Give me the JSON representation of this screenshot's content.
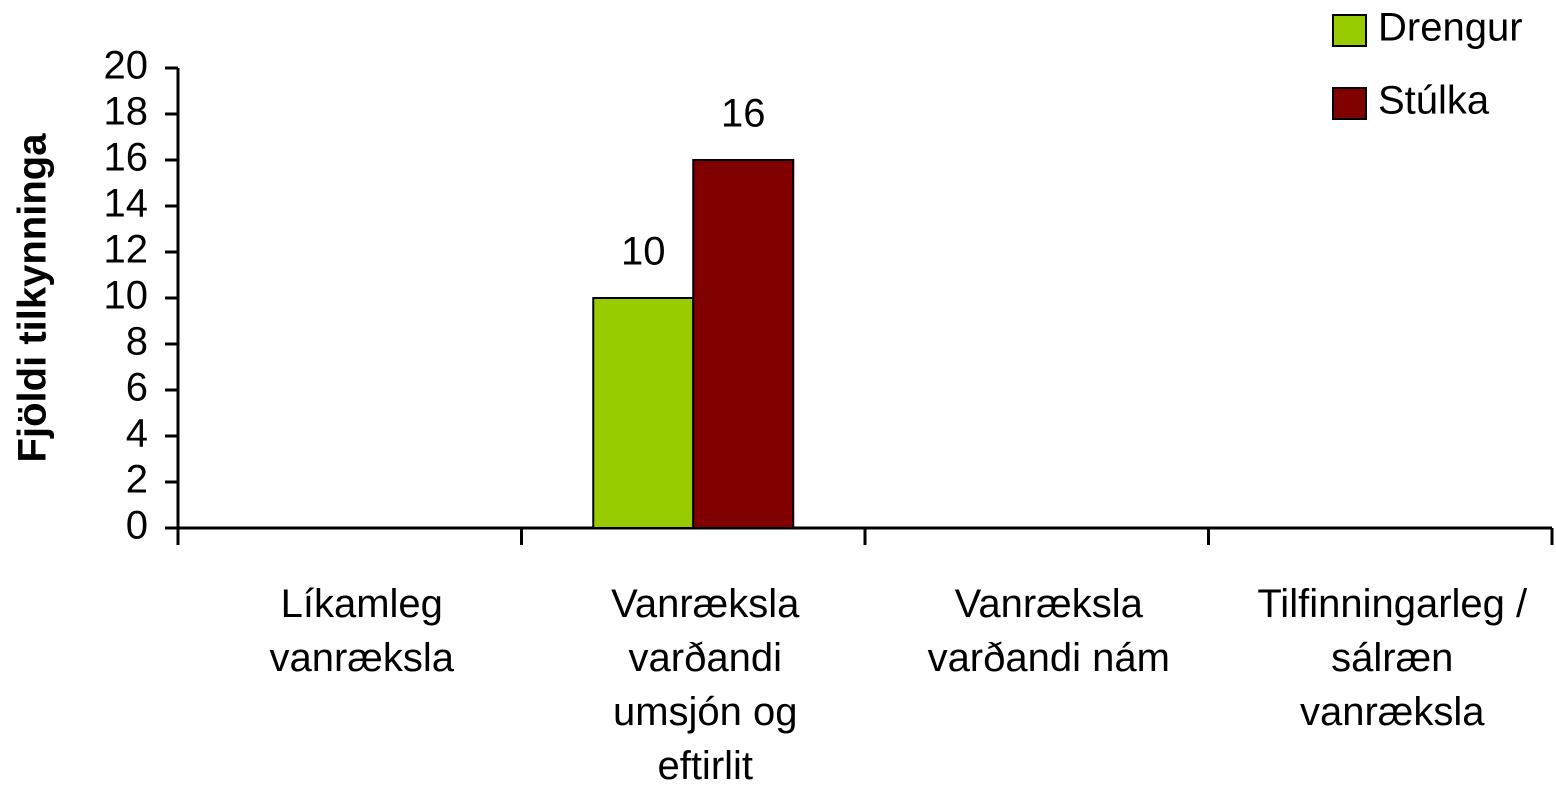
{
  "chart_data": {
    "type": "bar",
    "y_label": "Fjöldi tilkynninga",
    "categories": [
      "Líkamleg\nvanræksla",
      "Vanræksla\nvarðandi\numsjón og\neftirlit",
      "Vanræksla\nvarðandi nám",
      "Tilfinningarleg /\nsálræn\nvanræksla"
    ],
    "series": [
      {
        "name": "Drengur",
        "color": "#99cc00",
        "values": [
          null,
          10,
          null,
          null
        ]
      },
      {
        "name": "Stúlka",
        "color": "#800000",
        "values": [
          null,
          16,
          null,
          null
        ]
      }
    ],
    "ylim": [
      0,
      20
    ],
    "yticks": [
      0,
      2,
      4,
      6,
      8,
      10,
      12,
      14,
      16,
      18,
      20
    ],
    "legend": "top-right"
  }
}
